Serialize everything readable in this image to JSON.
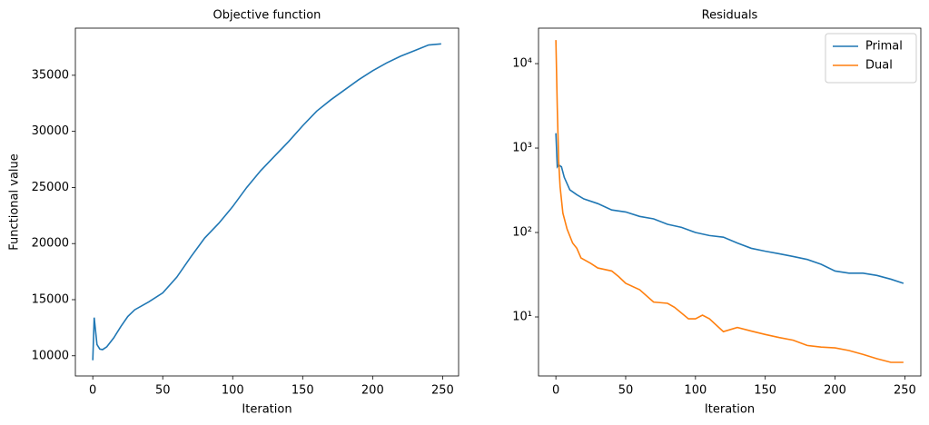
{
  "chart_data": [
    {
      "type": "line",
      "title": "Objective function",
      "xlabel": "Iteration",
      "ylabel": "Functional value",
      "xlim": [
        -12.45,
        261.45
      ],
      "xticks": [
        0,
        50,
        100,
        150,
        200,
        250
      ],
      "ylim": [
        8200,
        39200
      ],
      "yticks": [
        10000,
        15000,
        20000,
        25000,
        30000,
        35000
      ],
      "series": [
        {
          "color": "#1f77b4",
          "x": [
            0,
            1,
            3,
            5,
            7,
            10,
            15,
            20,
            25,
            30,
            40,
            50,
            60,
            70,
            80,
            90,
            100,
            110,
            120,
            130,
            140,
            150,
            160,
            170,
            180,
            190,
            200,
            210,
            220,
            230,
            240,
            249
          ],
          "values": [
            9600,
            13400,
            11000,
            10600,
            10550,
            10800,
            11600,
            12600,
            13500,
            14100,
            14800,
            15600,
            17000,
            18800,
            20500,
            21800,
            23300,
            25000,
            26500,
            27800,
            29100,
            30500,
            31800,
            32800,
            33700,
            34600,
            35400,
            36100,
            36700,
            37200,
            37700,
            37800
          ]
        }
      ]
    },
    {
      "type": "line",
      "title": "Residuals",
      "xlabel": "Iteration",
      "log_y": true,
      "legend": "upper right",
      "xlim": [
        -12.45,
        261.45
      ],
      "xticks": [
        0,
        50,
        100,
        150,
        200,
        250
      ],
      "ylim": [
        2.0,
        26300
      ],
      "yticks": [
        {
          "value": 10,
          "label": "10¹"
        },
        {
          "value": 100,
          "label": "10²"
        },
        {
          "value": 1000,
          "label": "10³"
        },
        {
          "value": 10000,
          "label": "10⁴"
        }
      ],
      "series": [
        {
          "name": "Primal",
          "color": "#1f77b4",
          "x": [
            0,
            1,
            2,
            4,
            6,
            10,
            15,
            20,
            30,
            40,
            50,
            60,
            70,
            80,
            90,
            100,
            110,
            120,
            130,
            140,
            150,
            160,
            170,
            180,
            190,
            200,
            210,
            220,
            230,
            240,
            249
          ],
          "values": [
            1500,
            600,
            630,
            600,
            450,
            320,
            280,
            250,
            220,
            185,
            175,
            155,
            145,
            125,
            115,
            100,
            92,
            88,
            75,
            65,
            60,
            56,
            52,
            48,
            42,
            35,
            33,
            33,
            31,
            28,
            25
          ]
        },
        {
          "name": "Dual",
          "color": "#ff7f0e",
          "x": [
            0,
            1,
            2,
            3,
            5,
            8,
            12,
            15,
            18,
            25,
            30,
            40,
            45,
            50,
            60,
            70,
            80,
            85,
            95,
            100,
            105,
            110,
            120,
            130,
            140,
            150,
            160,
            170,
            180,
            190,
            200,
            210,
            220,
            230,
            240,
            249
          ],
          "values": [
            19000,
            3000,
            700,
            350,
            170,
            110,
            75,
            65,
            50,
            43,
            38,
            35,
            30,
            25,
            21,
            15,
            14.5,
            13,
            9.5,
            9.5,
            10.5,
            9.5,
            6.7,
            7.5,
            6.8,
            6.2,
            5.7,
            5.3,
            4.6,
            4.4,
            4.3,
            4,
            3.6,
            3.2,
            2.9,
            2.9
          ]
        }
      ]
    }
  ]
}
